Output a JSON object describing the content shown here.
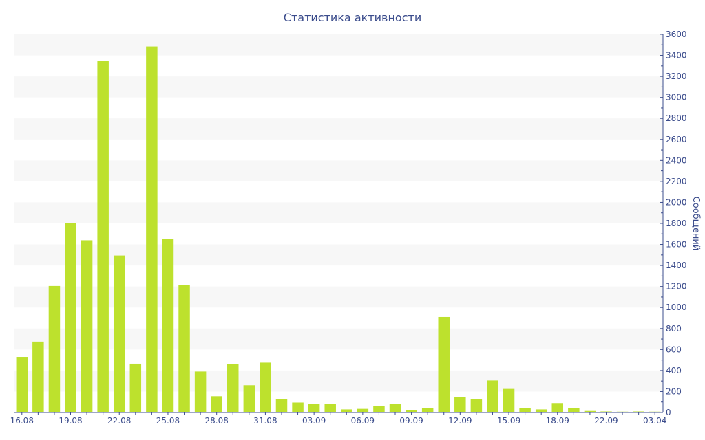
{
  "chart_data": {
    "type": "bar",
    "title": "Статистика активности",
    "xlabel": "",
    "ylabel": "Сообщений",
    "ylim": [
      0,
      3600
    ],
    "y_ticks": [
      0,
      200,
      400,
      600,
      800,
      1000,
      1200,
      1400,
      1600,
      1800,
      2000,
      2200,
      2400,
      2600,
      2800,
      3000,
      3200,
      3400,
      3600
    ],
    "y_axis_position": "right",
    "grid": "alternating horizontal bands",
    "bar_color": "#bde12d",
    "text_color": "#3b4c8c",
    "band_color": "#f7f7f7",
    "x_tick_labels": [
      {
        "index": 0,
        "label": "16.08"
      },
      {
        "index": 3,
        "label": "19.08"
      },
      {
        "index": 6,
        "label": "22.08"
      },
      {
        "index": 9,
        "label": "25.08"
      },
      {
        "index": 12,
        "label": "28.08"
      },
      {
        "index": 15,
        "label": "31.08"
      },
      {
        "index": 18,
        "label": "03.09"
      },
      {
        "index": 21,
        "label": "06.09"
      },
      {
        "index": 24,
        "label": "09.09"
      },
      {
        "index": 27,
        "label": "12.09"
      },
      {
        "index": 30,
        "label": "15.09"
      },
      {
        "index": 33,
        "label": "18.09"
      },
      {
        "index": 36,
        "label": "22.09"
      },
      {
        "index": 39,
        "label": "03.04"
      }
    ],
    "values": [
      530,
      675,
      1205,
      1805,
      1640,
      3350,
      1495,
      465,
      3485,
      1650,
      1215,
      390,
      155,
      460,
      260,
      475,
      130,
      95,
      80,
      85,
      30,
      35,
      65,
      80,
      20,
      40,
      910,
      150,
      125,
      305,
      225,
      45,
      30,
      90,
      40,
      15,
      10,
      8,
      10,
      8
    ]
  }
}
